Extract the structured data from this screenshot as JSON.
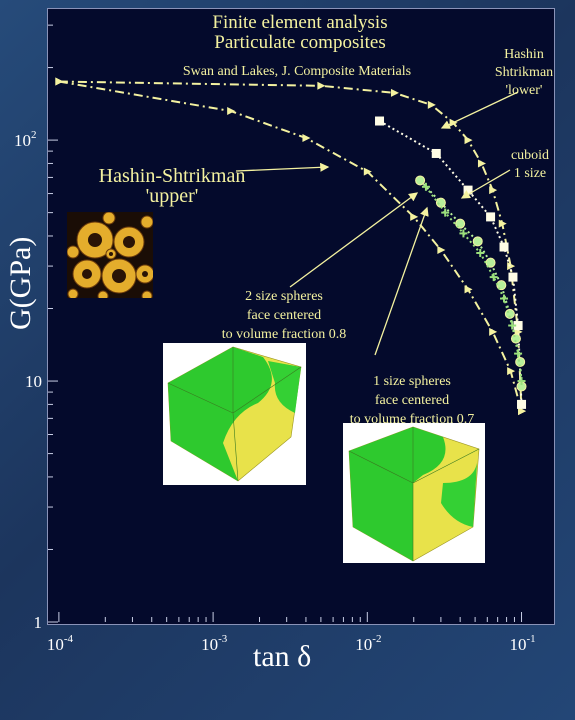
{
  "chart_data": {
    "type": "scatter",
    "title": [
      "Finite element analysis",
      "Particulate composites"
    ],
    "subtitle": "Swan and Lakes, J. Composite Materials",
    "xlabel": "tan δ",
    "ylabel": "G(GPa)",
    "xscale": "log",
    "yscale": "log",
    "xlim": [
      8.5e-05,
      0.16
    ],
    "ylim": [
      1,
      350
    ],
    "xticks": [
      {
        "value": 0.0001,
        "base": "10",
        "exp": "-4"
      },
      {
        "value": 0.001,
        "base": "10",
        "exp": "-3"
      },
      {
        "value": 0.01,
        "base": "10",
        "exp": "-2"
      },
      {
        "value": 0.1,
        "base": "10",
        "exp": "-1"
      }
    ],
    "yticks": [
      {
        "value": 1,
        "label": "1"
      },
      {
        "value": 10,
        "label": "10"
      },
      {
        "value": 100,
        "base": "10",
        "exp": "2"
      }
    ],
    "series": [
      {
        "key": "hs_upper",
        "style": "dashdot",
        "marker": "triangle",
        "color": "#f4f2a0",
        "x": [
          0.0001,
          0.0013,
          0.004,
          0.01,
          0.02,
          0.03,
          0.045,
          0.065,
          0.085,
          0.1
        ],
        "y": [
          175,
          132,
          102,
          74,
          48,
          35,
          24,
          16,
          11,
          7.5
        ]
      },
      {
        "key": "hs_lower",
        "style": "dashdot",
        "marker": "triangle",
        "color": "#f4f2a0",
        "x": [
          0.0001,
          0.005,
          0.015,
          0.026,
          0.036,
          0.045,
          0.055,
          0.065,
          0.075,
          0.085,
          0.095,
          0.1
        ],
        "y": [
          175,
          168,
          157,
          140,
          118,
          100,
          80,
          62,
          45,
          30,
          16,
          7.5
        ]
      },
      {
        "key": "cuboid",
        "style": "dotted",
        "marker": "square",
        "color": "#fffde6",
        "x": [
          0.012,
          0.028,
          0.045,
          0.063,
          0.077,
          0.088,
          0.095,
          0.1
        ],
        "y": [
          120,
          88,
          62,
          48,
          36,
          27,
          17,
          8
        ]
      },
      {
        "key": "spheres_2",
        "style": "dotted",
        "marker": "circle",
        "color": "#b7f09a",
        "x": [
          0.022,
          0.03,
          0.04,
          0.052,
          0.063,
          0.074,
          0.084,
          0.092,
          0.098,
          0.1
        ],
        "y": [
          68,
          55,
          45,
          38,
          31,
          25,
          19,
          15,
          12,
          9.5
        ]
      },
      {
        "key": "spheres_1",
        "style": "dotted",
        "marker": "cross",
        "color": "#9be07c",
        "x": [
          0.024,
          0.032,
          0.042,
          0.054,
          0.066,
          0.077,
          0.087,
          0.095,
          0.1
        ],
        "y": [
          64,
          50,
          41,
          34,
          27,
          22,
          17,
          13,
          10
        ]
      }
    ],
    "annotations": [
      {
        "text": [
          "Hashin",
          "Shtrikman",
          "'lower'"
        ]
      },
      {
        "text": [
          "cuboid",
          "1 size"
        ]
      },
      {
        "text": [
          "Hashin-Shtrikman",
          "'upper'"
        ]
      },
      {
        "text": [
          "2 size spheres",
          "face centered",
          "to volume fraction 0.8"
        ]
      },
      {
        "text": [
          "1 size spheres",
          "face centered",
          "to volume fraction 0.7"
        ]
      }
    ],
    "grid": false,
    "legend": "none"
  }
}
